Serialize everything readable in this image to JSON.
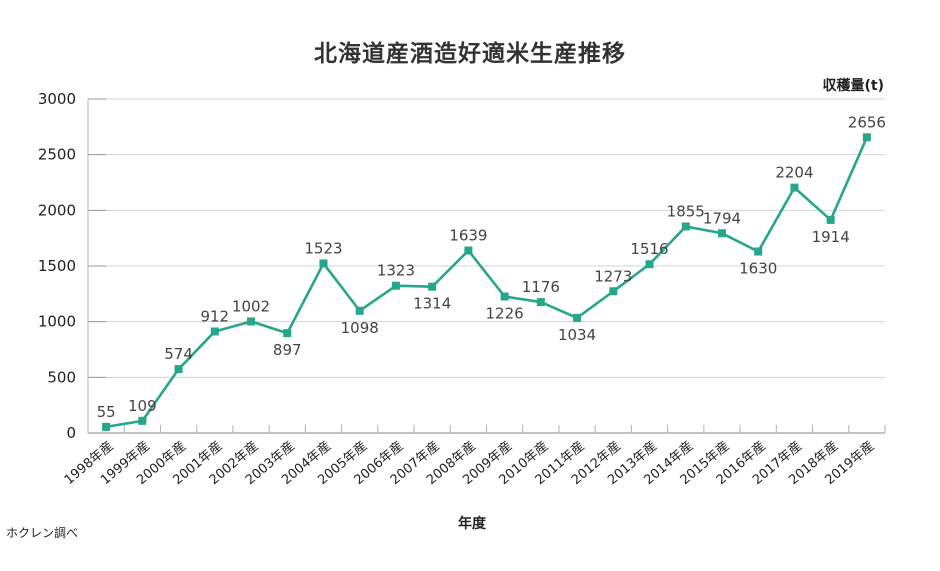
{
  "chart_data": {
    "type": "line",
    "title": "北海道産酒造好適米生産推移",
    "xlabel": "年度",
    "ylabel": "収穫量(t)",
    "ylim": [
      0,
      3000
    ],
    "yticks": [
      0,
      500,
      1000,
      1500,
      2000,
      2500,
      3000
    ],
    "grid": true,
    "legend": null,
    "categories": [
      "1998年産",
      "1999年産",
      "2000年産",
      "2001年産",
      "2002年産",
      "2003年産",
      "2004年産",
      "2005年産",
      "2006年産",
      "2007年産",
      "2008年産",
      "2009年産",
      "2010年産",
      "2011年産",
      "2012年産",
      "2013年産",
      "2014年産",
      "2015年産",
      "2016年産",
      "2017年産",
      "2018年産",
      "2019年産"
    ],
    "series": [
      {
        "name": "収穫量",
        "color": "#26a68a",
        "values": [
          55,
          109,
          574,
          912,
          1002,
          897,
          1523,
          1098,
          1323,
          1314,
          1639,
          1226,
          1176,
          1034,
          1273,
          1516,
          1855,
          1794,
          1630,
          2204,
          1914,
          2656
        ],
        "label_position": [
          "above",
          "above",
          "above",
          "above",
          "above",
          "below",
          "above",
          "below",
          "above",
          "below",
          "above",
          "below",
          "above",
          "below",
          "above",
          "above",
          "above",
          "above",
          "below",
          "above",
          "below",
          "above"
        ]
      }
    ],
    "source_note": "ホクレン調べ"
  },
  "header": {
    "title": "北海道産酒造好適米生産推移",
    "unit_label": "収穫量(t)"
  },
  "footer": {
    "xaxis_label": "年度",
    "source": "ホクレン調べ"
  }
}
